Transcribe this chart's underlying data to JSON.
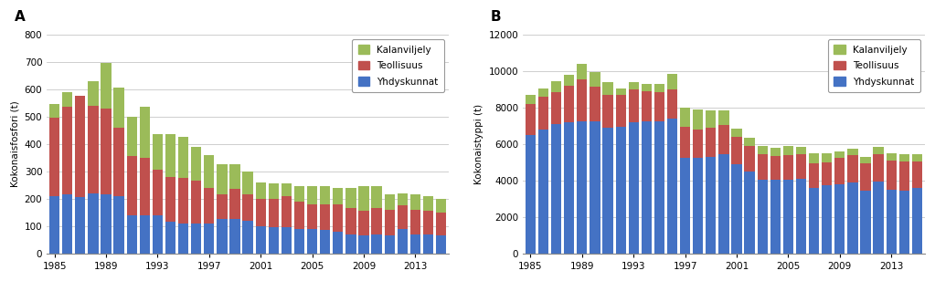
{
  "years": [
    1985,
    1986,
    1987,
    1988,
    1989,
    1990,
    1991,
    1992,
    1993,
    1994,
    1995,
    1996,
    1997,
    1998,
    1999,
    2000,
    2001,
    2002,
    2003,
    2004,
    2005,
    2006,
    2007,
    2008,
    2009,
    2010,
    2011,
    2012,
    2013,
    2014,
    2015
  ],
  "A_yhdyskunnat": [
    210,
    215,
    205,
    220,
    215,
    210,
    140,
    140,
    140,
    115,
    110,
    110,
    110,
    125,
    125,
    120,
    100,
    95,
    95,
    90,
    90,
    85,
    80,
    70,
    65,
    70,
    65,
    90,
    70,
    70,
    65
  ],
  "A_teollisuus": [
    285,
    320,
    370,
    320,
    315,
    250,
    215,
    210,
    165,
    165,
    165,
    155,
    130,
    90,
    110,
    95,
    100,
    105,
    115,
    100,
    90,
    95,
    100,
    95,
    90,
    95,
    95,
    85,
    90,
    85,
    85
  ],
  "A_kalanviljely": [
    50,
    55,
    0,
    90,
    165,
    145,
    145,
    185,
    130,
    155,
    150,
    125,
    120,
    110,
    90,
    85,
    60,
    55,
    45,
    55,
    65,
    65,
    60,
    75,
    90,
    80,
    55,
    45,
    55,
    55,
    50
  ],
  "B_yhdyskunnat": [
    6500,
    6800,
    7100,
    7200,
    7250,
    7250,
    6900,
    6950,
    7200,
    7250,
    7250,
    7400,
    5250,
    5250,
    5300,
    5450,
    4900,
    4500,
    4050,
    4050,
    4050,
    4100,
    3600,
    3750,
    3800,
    3900,
    3450,
    3950,
    3500,
    3450,
    3600
  ],
  "B_teollisuus": [
    1700,
    1800,
    1750,
    2000,
    2300,
    1900,
    1800,
    1750,
    1800,
    1650,
    1600,
    1600,
    1700,
    1550,
    1600,
    1600,
    1500,
    1400,
    1400,
    1300,
    1350,
    1350,
    1350,
    1250,
    1450,
    1500,
    1500,
    1500,
    1600,
    1600,
    1450
  ],
  "B_kalanviljely": [
    500,
    450,
    600,
    600,
    850,
    800,
    700,
    350,
    400,
    400,
    450,
    850,
    1050,
    1100,
    950,
    800,
    450,
    450,
    450,
    450,
    500,
    400,
    550,
    500,
    350,
    350,
    350,
    400,
    400,
    400,
    400
  ],
  "color_yhdyskunnat": "#4472C4",
  "color_teollisuus": "#C0504D",
  "color_kalanviljely": "#9BBB59",
  "ylabel_A": "Kokonaisfosfori (t)",
  "ylabel_B": "Kokonaistyppi (t)",
  "ylim_A": [
    0,
    800
  ],
  "ylim_B": [
    0,
    12000
  ],
  "yticks_A": [
    0,
    100,
    200,
    300,
    400,
    500,
    600,
    700,
    800
  ],
  "yticks_B": [
    0,
    2000,
    4000,
    6000,
    8000,
    10000,
    12000
  ],
  "xtick_years": [
    1985,
    1989,
    1993,
    1997,
    2001,
    2005,
    2009,
    2013
  ],
  "label_A": "A",
  "label_B": "B",
  "bg_color": "#FFFFFF",
  "grid_color": "#BBBBBB"
}
